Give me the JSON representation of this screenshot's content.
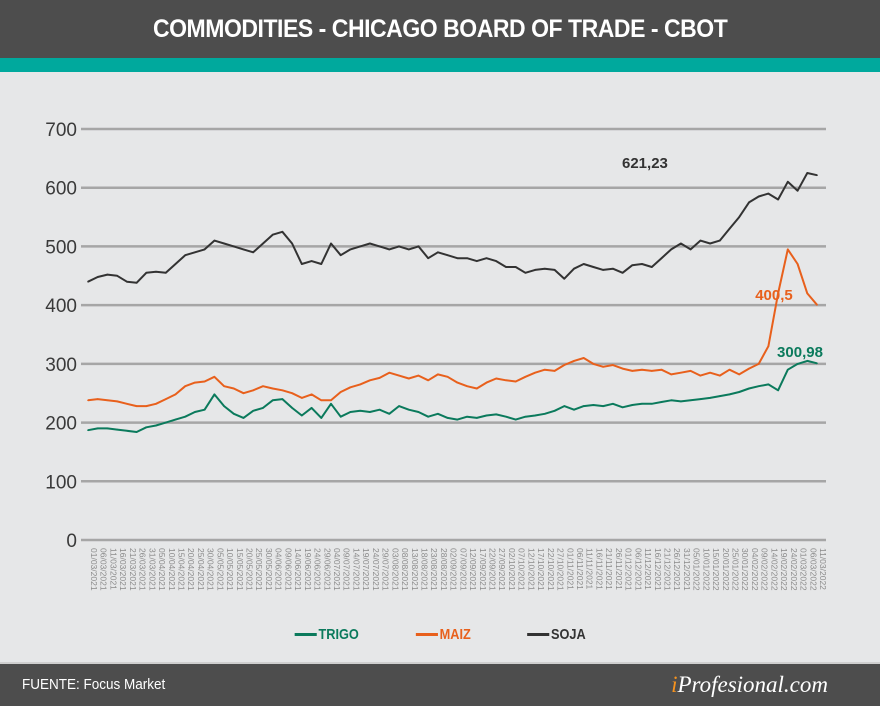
{
  "header": {
    "title": "COMMODITIES - CHICAGO BOARD OF TRADE - CBOT"
  },
  "colors": {
    "header_bg": "#4d4d4d",
    "accent": "#00a99d",
    "trigo": "#0b7a5c",
    "maiz": "#e8601c",
    "soja": "#333333",
    "grid": "#a6a6a6",
    "brand_i": "#f7931e"
  },
  "footer": {
    "source": "FUENTE: Focus Market",
    "brand_i": "i",
    "brand_rest": "Profesional.com"
  },
  "chart_data": {
    "type": "line",
    "title": "COMMODITIES - CHICAGO BOARD OF TRADE - CBOT",
    "xlabel": "",
    "ylabel": "",
    "ylim": [
      0,
      700
    ],
    "yticks": [
      0,
      100,
      200,
      300,
      400,
      500,
      600,
      700
    ],
    "ytick_labels": [
      "0",
      "100",
      "200",
      "300",
      "400",
      "500",
      "600",
      "700"
    ],
    "grid": true,
    "legend_position": "bottom-center",
    "x": [
      "01/03/2021",
      "06/03/2021",
      "11/03/2021",
      "16/03/2021",
      "21/03/2021",
      "26/03/2021",
      "31/03/2021",
      "05/04/2021",
      "10/04/2021",
      "15/04/2021",
      "20/04/2021",
      "25/04/2021",
      "30/04/2021",
      "05/05/2021",
      "10/05/2021",
      "15/05/2021",
      "20/05/2021",
      "25/05/2021",
      "30/05/2021",
      "04/06/2021",
      "09/06/2021",
      "14/06/2021",
      "19/06/2021",
      "24/06/2021",
      "29/06/2021",
      "04/07/2021",
      "09/07/2021",
      "14/07/2021",
      "19/07/2021",
      "24/07/2021",
      "29/07/2021",
      "03/08/2021",
      "08/08/2021",
      "13/08/2021",
      "18/08/2021",
      "23/08/2021",
      "28/08/2021",
      "02/09/2021",
      "07/09/2021",
      "12/09/2021",
      "17/09/2021",
      "22/09/2021",
      "27/09/2021",
      "02/10/2021",
      "07/10/2021",
      "12/10/2021",
      "17/10/2021",
      "22/10/2021",
      "27/10/2021",
      "01/11/2021",
      "06/11/2021",
      "11/11/2021",
      "16/11/2021",
      "21/11/2021",
      "26/11/2021",
      "01/12/2021",
      "06/12/2021",
      "11/12/2021",
      "16/12/2021",
      "21/12/2021",
      "26/12/2021",
      "31/12/2021",
      "05/01/2022",
      "10/01/2022",
      "15/01/2022",
      "20/01/2022",
      "25/01/2022",
      "30/01/2022",
      "04/02/2022",
      "09/02/2022",
      "14/02/2022",
      "19/02/2022",
      "24/02/2022",
      "01/03/2022",
      "06/03/2022",
      "11/03/2022"
    ],
    "series": [
      {
        "name": "TRIGO",
        "color": "#0b7a5c",
        "end_label": "300,98",
        "values": [
          187,
          190,
          190,
          188,
          186,
          184,
          192,
          195,
          200,
          205,
          210,
          218,
          222,
          248,
          228,
          215,
          208,
          220,
          225,
          238,
          240,
          225,
          212,
          225,
          208,
          232,
          210,
          218,
          220,
          218,
          222,
          215,
          228,
          222,
          218,
          210,
          215,
          208,
          205,
          210,
          208,
          212,
          214,
          210,
          205,
          210,
          212,
          215,
          220,
          228,
          222,
          228,
          230,
          228,
          232,
          226,
          230,
          232,
          232,
          235,
          238,
          236,
          238,
          240,
          242,
          245,
          248,
          252,
          258,
          262,
          265,
          255,
          290,
          300,
          305,
          301
        ]
      },
      {
        "name": "MAIZ",
        "color": "#e8601c",
        "end_label": "400,5",
        "values": [
          238,
          240,
          238,
          236,
          232,
          228,
          228,
          232,
          240,
          248,
          262,
          268,
          270,
          278,
          262,
          258,
          250,
          255,
          262,
          258,
          255,
          250,
          242,
          248,
          238,
          238,
          252,
          260,
          265,
          272,
          276,
          285,
          280,
          275,
          280,
          272,
          282,
          278,
          268,
          262,
          258,
          268,
          275,
          272,
          270,
          278,
          285,
          290,
          288,
          298,
          305,
          310,
          300,
          295,
          298,
          292,
          288,
          290,
          288,
          290,
          282,
          285,
          288,
          280,
          285,
          280,
          290,
          282,
          292,
          300,
          330,
          420,
          495,
          470,
          420,
          400.5
        ]
      },
      {
        "name": "SOJA",
        "color": "#333333",
        "end_label": "621,23",
        "values": [
          440,
          448,
          452,
          450,
          440,
          438,
          455,
          457,
          455,
          470,
          485,
          490,
          495,
          510,
          505,
          500,
          495,
          490,
          505,
          520,
          525,
          505,
          470,
          475,
          470,
          505,
          485,
          495,
          500,
          505,
          500,
          495,
          500,
          495,
          500,
          480,
          490,
          485,
          480,
          480,
          475,
          480,
          475,
          465,
          465,
          455,
          460,
          462,
          460,
          445,
          462,
          470,
          465,
          460,
          462,
          455,
          468,
          470,
          465,
          480,
          495,
          505,
          495,
          510,
          505,
          510,
          530,
          550,
          575,
          585,
          590,
          580,
          610,
          595,
          625,
          621.23
        ]
      }
    ]
  }
}
